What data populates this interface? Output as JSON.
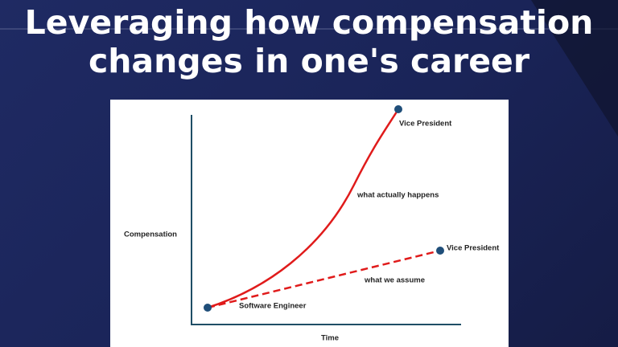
{
  "title_lines": [
    "Leveraging how compensation",
    "changes in one's career"
  ],
  "diagram": {
    "y_label": "Compensation",
    "x_label": "Time",
    "start_label": "Software Engineer",
    "curves": [
      {
        "label": "what actually happens",
        "end_label": "Vice President"
      },
      {
        "label": "what we assume",
        "end_label": "Vice President"
      }
    ]
  }
}
